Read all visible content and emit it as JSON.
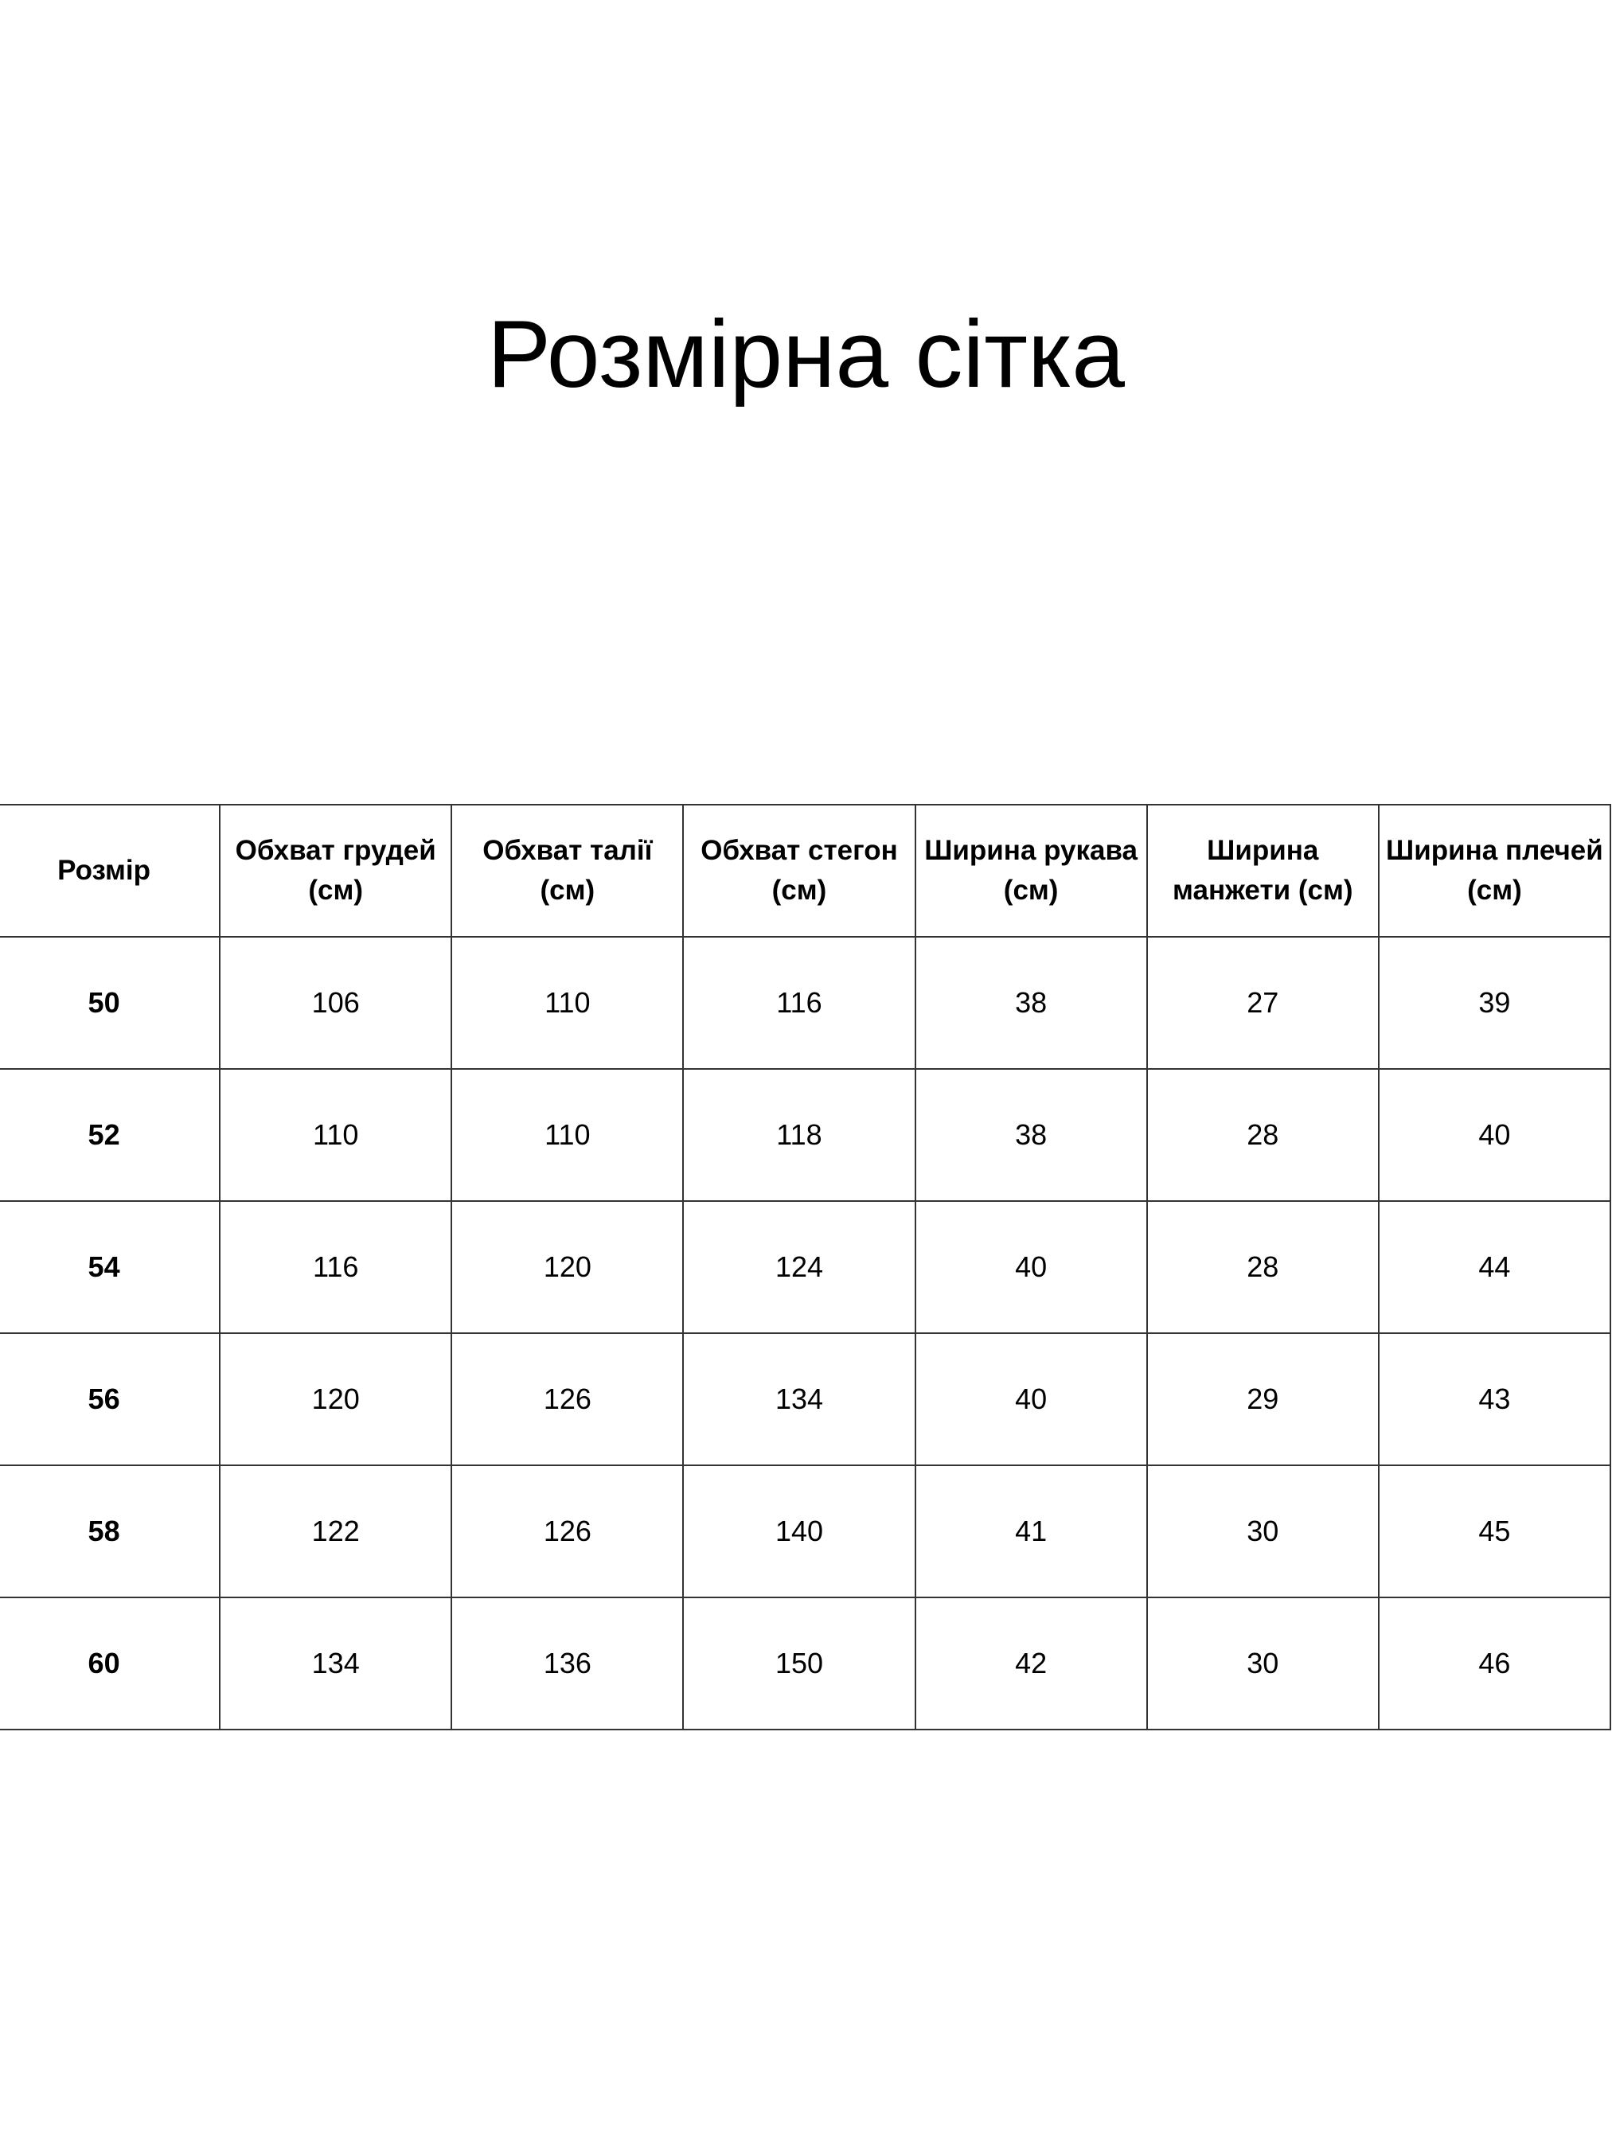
{
  "title": "Розмірна сітка",
  "table": {
    "headers": [
      "Розмір",
      "Обхват грудей (см)",
      "Обхват талії (см)",
      "Обхват стегон (см)",
      "Ширина рукава (см)",
      "Ширина манжети (см)",
      "Ширина плечей (см)"
    ],
    "rows": [
      [
        "50",
        "106",
        "110",
        "116",
        "38",
        "27",
        "39"
      ],
      [
        "52",
        "110",
        "110",
        "118",
        "38",
        "28",
        "40"
      ],
      [
        "54",
        "116",
        "120",
        "124",
        "40",
        "28",
        "44"
      ],
      [
        "56",
        "120",
        "126",
        "134",
        "40",
        "29",
        "43"
      ],
      [
        "58",
        "122",
        "126",
        "140",
        "41",
        "30",
        "45"
      ],
      [
        "60",
        "134",
        "136",
        "150",
        "42",
        "30",
        "46"
      ]
    ]
  }
}
